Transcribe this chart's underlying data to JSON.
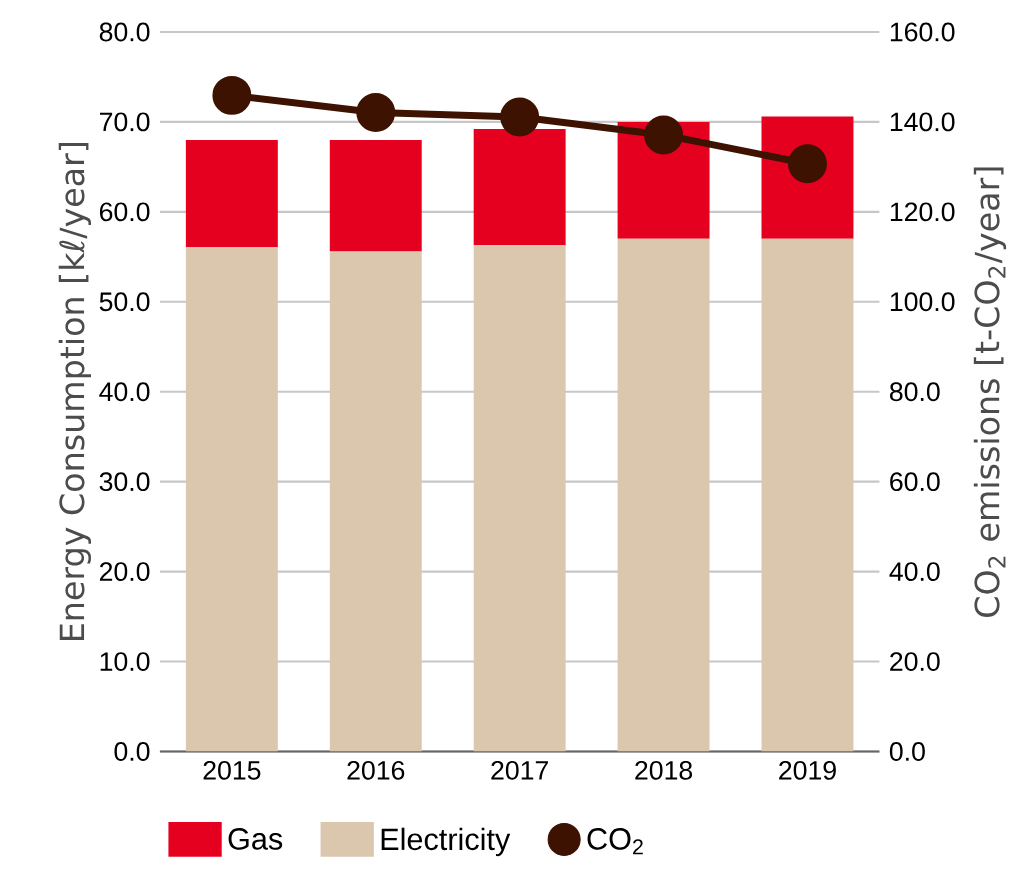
{
  "chart_data": {
    "type": "bar",
    "stacked": true,
    "xlabel": null,
    "ylabel": "Energy Consumption [kℓ/year]",
    "y2label": "CO$_{2}$ emissions [t-CO$_{2}$/year]",
    "categories": [
      "2015",
      "2016",
      "2017",
      "2018",
      "2019"
    ],
    "series": [
      {
        "name": "Electricity",
        "color": "#dbc7ae",
        "values": [
          56.1,
          55.6,
          56.3,
          57.0,
          57.0
        ]
      },
      {
        "name": "Gas",
        "color": "#e60020",
        "values": [
          11.9,
          12.4,
          12.9,
          13.0,
          13.6
        ]
      },
      {
        "name": "CO$_{2}$",
        "type": "line",
        "axis": "y2",
        "color": "#3d1200",
        "marker": "circle",
        "values": [
          145.9,
          142.1,
          141.1,
          137.1,
          130.7
        ]
      }
    ],
    "ylim": [
      0,
      80
    ],
    "yticks": [
      {
        "value": 0,
        "label": "0.0"
      },
      {
        "value": 10,
        "label": "10.0"
      },
      {
        "value": 20,
        "label": "20.0"
      },
      {
        "value": 30,
        "label": "30.0"
      },
      {
        "value": 40,
        "label": "40.0"
      },
      {
        "value": 50,
        "label": "50.0"
      },
      {
        "value": 60,
        "label": "60.0"
      },
      {
        "value": 70,
        "label": "70.0"
      },
      {
        "value": 80,
        "label": "80.0"
      }
    ],
    "y2lim": [
      0,
      160
    ],
    "y2ticks": [
      {
        "value": 0,
        "label": "0.0"
      },
      {
        "value": 20,
        "label": "20.0"
      },
      {
        "value": 40,
        "label": "40.0"
      },
      {
        "value": 60,
        "label": "60.0"
      },
      {
        "value": 80,
        "label": "80.0"
      },
      {
        "value": 100,
        "label": "100.0"
      },
      {
        "value": 120,
        "label": "120.0"
      },
      {
        "value": 140,
        "label": "140.0"
      },
      {
        "value": 160,
        "label": "160.0"
      }
    ],
    "grid": "y",
    "legend": "bottom left"
  }
}
